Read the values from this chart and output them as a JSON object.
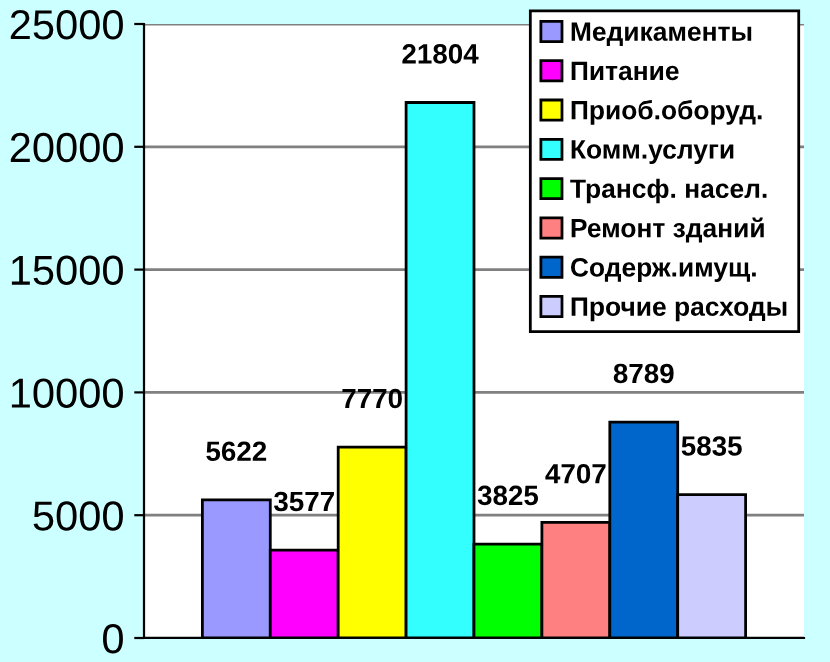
{
  "chart_data": {
    "type": "bar",
    "categories": [
      null
    ],
    "series": [
      {
        "name": "Медикаменты",
        "color": "#9999ff",
        "values": [
          5622
        ]
      },
      {
        "name": "Питание",
        "color": "#ff00ff",
        "values": [
          3577
        ]
      },
      {
        "name": "Приоб.оборуд.",
        "color": "#ffff00",
        "values": [
          7770
        ]
      },
      {
        "name": "Комм.услуги",
        "color": "#33ffff",
        "values": [
          21804
        ]
      },
      {
        "name": "Трансф. насел.",
        "color": "#00ff00",
        "values": [
          3825
        ]
      },
      {
        "name": "Ремонт зданий",
        "color": "#ff8080",
        "values": [
          4707
        ]
      },
      {
        "name": "Содерж.имущ.",
        "color": "#0066cc",
        "values": [
          8789
        ]
      },
      {
        "name": "Прочие расходы",
        "color": "#ccccff",
        "values": [
          5835
        ]
      }
    ],
    "ylim": [
      0,
      25000
    ],
    "yticks": [
      0,
      5000,
      10000,
      15000,
      20000,
      25000
    ],
    "grid": "y",
    "legend": "top right",
    "data_labels": true
  }
}
